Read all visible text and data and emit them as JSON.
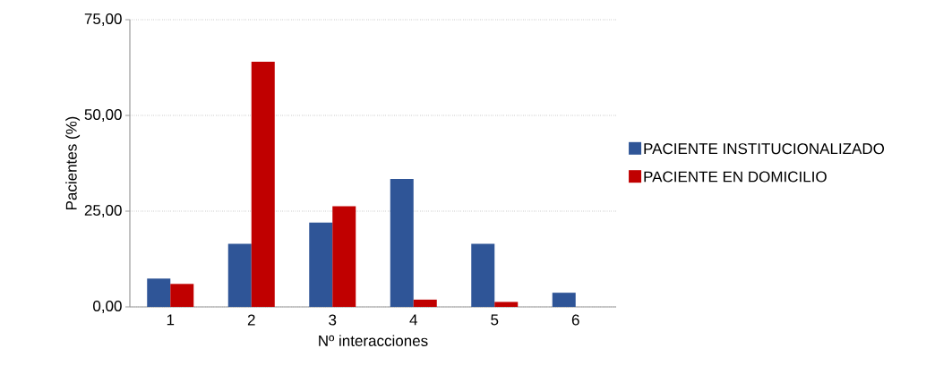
{
  "chart_data": {
    "type": "bar",
    "xlabel": "Nº interacciones",
    "ylabel": "Pacientes  (%)",
    "categories": [
      "1",
      "2",
      "3",
      "4",
      "5",
      "6"
    ],
    "series": [
      {
        "name": "PACIENTE INSTITUCIONALIZADO",
        "color": "#2f5597",
        "values": [
          7.4,
          16.5,
          22.0,
          33.4,
          16.5,
          3.7
        ]
      },
      {
        "name": "PACIENTE EN DOMICILIO",
        "color": "#c00000",
        "values": [
          6.0,
          64.0,
          26.3,
          1.9,
          1.3,
          null
        ]
      }
    ],
    "ylim": [
      0,
      75
    ],
    "yticks": [
      {
        "value": 0,
        "label": "0,00"
      },
      {
        "value": 25,
        "label": "25,00"
      },
      {
        "value": 50,
        "label": "50,00"
      },
      {
        "value": 75,
        "label": "75,00"
      }
    ],
    "grid": "y",
    "legend": "right"
  }
}
